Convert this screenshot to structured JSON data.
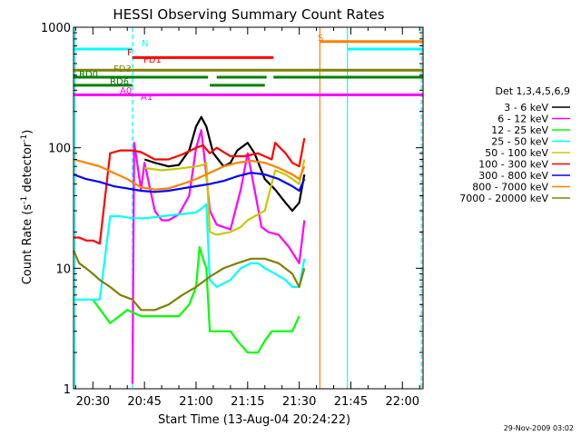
{
  "chart_data": {
    "type": "line",
    "title": "HESSI Observing Summary Count Rates",
    "xlabel": "Start Time (13-Aug-04 20:24:22)",
    "ylabel_main": "Count Rate (s",
    "ylabel_sup1": "-1",
    "ylabel_mid": " detector",
    "ylabel_sup2": "-1",
    "ylabel_end": ")",
    "ylog": true,
    "ylim": [
      1,
      1000
    ],
    "y_ticks": [
      {
        "value": 1,
        "label": "1"
      },
      {
        "value": 10,
        "label": "10"
      },
      {
        "value": 100,
        "label": "100"
      },
      {
        "value": 1000,
        "label": "1000"
      }
    ],
    "x_range_min": [
      24.37,
      126.0
    ],
    "x_ticks": [
      {
        "value": 30,
        "label": "20:30"
      },
      {
        "value": 45,
        "label": "20:45"
      },
      {
        "value": 60,
        "label": "21:00"
      },
      {
        "value": 75,
        "label": "21:15"
      },
      {
        "value": 90,
        "label": "21:30"
      },
      {
        "value": 105,
        "label": "21:45"
      },
      {
        "value": 120,
        "label": "22:00"
      }
    ],
    "legend_title": "Det 1,3,4,5,6,9",
    "legend_position": "right",
    "timestamp": "29-Nov-2009 03:02",
    "series": [
      {
        "name": "3 - 6 keV",
        "color": "#000000",
        "x": [
          24.4,
          30,
          35,
          40,
          42,
          44,
          45,
          48,
          52,
          55,
          58,
          60,
          61.5,
          63,
          65,
          68,
          70,
          72,
          75,
          77,
          80,
          83,
          86,
          88,
          90,
          91.5
        ],
        "y": [
          null,
          null,
          null,
          null,
          null,
          null,
          80,
          75,
          70,
          72,
          95,
          150,
          180,
          150,
          90,
          70,
          75,
          95,
          110,
          90,
          55,
          45,
          35,
          30,
          35,
          60
        ]
      },
      {
        "name": "6 - 12 keV",
        "color": "#ff00ff",
        "x": [
          41.5,
          42,
          44,
          45,
          48,
          50,
          52,
          55,
          58,
          60,
          61.5,
          63,
          64,
          66,
          70,
          73,
          75,
          77,
          79,
          81,
          84,
          87,
          90,
          91.5
        ],
        "y": [
          1.1,
          110,
          45,
          75,
          30,
          25,
          25,
          28,
          40,
          100,
          140,
          60,
          30,
          23,
          21,
          45,
          90,
          45,
          22,
          20,
          19,
          15,
          11,
          25
        ]
      },
      {
        "name": "12 - 25 keV",
        "color": "#00ff00",
        "x": [
          24.4,
          30,
          35,
          40,
          44,
          48,
          55,
          58,
          60,
          61,
          62,
          63,
          64,
          68,
          70,
          72,
          75,
          78,
          80,
          82,
          84,
          86,
          88,
          90
        ],
        "y": [
          null,
          5.5,
          3.5,
          4.5,
          4,
          4,
          4,
          5,
          7,
          15,
          12,
          10,
          3,
          3,
          3,
          2.5,
          2,
          2,
          2.5,
          3,
          3,
          3,
          3,
          4
        ]
      },
      {
        "name": "25 - 50 keV",
        "color": "#00ffff",
        "x": [
          24.4,
          28,
          32,
          35,
          38,
          41.5,
          45,
          50,
          55,
          60,
          62,
          63,
          64,
          66,
          70,
          73,
          76,
          78,
          80,
          83,
          86,
          88,
          90,
          91.5
        ],
        "y": [
          5.5,
          5.5,
          5.5,
          27,
          27,
          26,
          26,
          27,
          28,
          29,
          32,
          34,
          8,
          7,
          8,
          10,
          11,
          11,
          10,
          9,
          8,
          7,
          7,
          12
        ]
      },
      {
        "name": "50 - 100 keV",
        "color": "#c8c800",
        "x": [
          24.4,
          30,
          35,
          38,
          41.5,
          45,
          50,
          55,
          60,
          62,
          63,
          64,
          66,
          70,
          73,
          75,
          78,
          80,
          83,
          86,
          88,
          90,
          91.5
        ],
        "y": [
          null,
          null,
          null,
          null,
          null,
          68,
          65,
          67,
          70,
          72,
          75,
          20,
          19,
          20,
          22,
          25,
          28,
          30,
          65,
          60,
          55,
          50,
          80
        ]
      },
      {
        "name": "100 - 300 keV",
        "color": "#ff0000",
        "x": [
          24.4,
          26,
          28,
          30,
          32,
          35,
          38,
          41.5,
          44,
          48,
          52,
          56,
          60,
          62,
          64,
          66,
          70,
          74,
          78,
          82,
          83,
          86,
          88,
          90,
          91.5
        ],
        "y": [
          18,
          18,
          17,
          17,
          16,
          90,
          95,
          95,
          92,
          80,
          80,
          88,
          100,
          105,
          90,
          100,
          85,
          85,
          90,
          80,
          110,
          90,
          75,
          70,
          120
        ]
      },
      {
        "name": "300 - 800 keV",
        "color": "#0000ff",
        "x": [
          24.4,
          28,
          32,
          36,
          40,
          44,
          48,
          52,
          56,
          60,
          64,
          68,
          72,
          76,
          80,
          84,
          88,
          90,
          91.5
        ],
        "y": [
          60,
          55,
          52,
          48,
          46,
          44,
          43,
          44,
          46,
          48,
          50,
          53,
          58,
          62,
          60,
          55,
          48,
          44,
          55
        ]
      },
      {
        "name": "800 - 7000 keV",
        "color": "#ff8000",
        "x": [
          24.4,
          28,
          32,
          36,
          40,
          44,
          48,
          52,
          56,
          60,
          64,
          68,
          72,
          76,
          80,
          84,
          88,
          90,
          91.5
        ],
        "y": [
          80,
          75,
          70,
          62,
          55,
          47,
          45,
          46,
          50,
          55,
          62,
          70,
          75,
          78,
          75,
          68,
          60,
          55,
          70
        ]
      },
      {
        "name": "7000 - 20000 keV",
        "color": "#808000",
        "x": [
          24.4,
          26,
          28,
          30,
          32,
          35,
          38,
          41.5,
          44,
          48,
          52,
          56,
          60,
          64,
          68,
          72,
          76,
          80,
          84,
          88,
          90,
          91.5
        ],
        "y": [
          14,
          11,
          10,
          9,
          8,
          7,
          6,
          5.5,
          4.5,
          4.5,
          5,
          6,
          7,
          8.5,
          10,
          11,
          12,
          12,
          11,
          9,
          7,
          10
        ]
      }
    ],
    "flag_bars": [
      {
        "label": "N",
        "color": "#00ffff",
        "y_level": 660,
        "segments": [
          [
            24.4,
            41.5
          ],
          [
            104,
            126
          ]
        ]
      },
      {
        "label": "F",
        "color": "#ff0000",
        "y_level": 560,
        "segments": [
          [
            41.5,
            82.5
          ]
        ]
      },
      {
        "label": "FD1",
        "color": "#ff0000",
        "y_level": 510,
        "segments": []
      },
      {
        "label": "S",
        "color": "#ff8000",
        "y_level": 760,
        "segments": [
          [
            96,
            126
          ]
        ]
      },
      {
        "label": "FD3",
        "color": "#808000",
        "y_level": 440,
        "segments": [
          [
            24.4,
            41.5
          ],
          [
            41.5,
            126
          ]
        ]
      },
      {
        "label": "RD0",
        "color": "#008000",
        "y_level": 385,
        "segments": [
          [
            24.4,
            63.5
          ],
          [
            66,
            80.5
          ],
          [
            82.5,
            126
          ]
        ]
      },
      {
        "label": "RD6",
        "color": "#008000",
        "y_level": 330,
        "segments": [
          [
            24.4,
            41.5
          ],
          [
            64,
            80
          ]
        ]
      },
      {
        "label": "A0",
        "color": "#ff00ff",
        "y_level": 275,
        "segments": [
          [
            24.4,
            126
          ]
        ]
      },
      {
        "label": "A1",
        "color": "#ff00ff",
        "y_level": 250,
        "segments": []
      }
    ],
    "vertical_markers": [
      {
        "x": 24.8,
        "color": "#00ffff",
        "style": "solid"
      },
      {
        "x": 41.5,
        "color": "#00ffff",
        "style": "dashed"
      },
      {
        "x": 96,
        "color": "#ff8000",
        "style": "solid"
      },
      {
        "x": 104,
        "color": "#00ffff",
        "style": "solid"
      },
      {
        "x": 125.5,
        "color": "#00ffff",
        "style": "dashed"
      },
      {
        "x": 126,
        "color": "#ff8000",
        "style": "dashed"
      }
    ]
  }
}
